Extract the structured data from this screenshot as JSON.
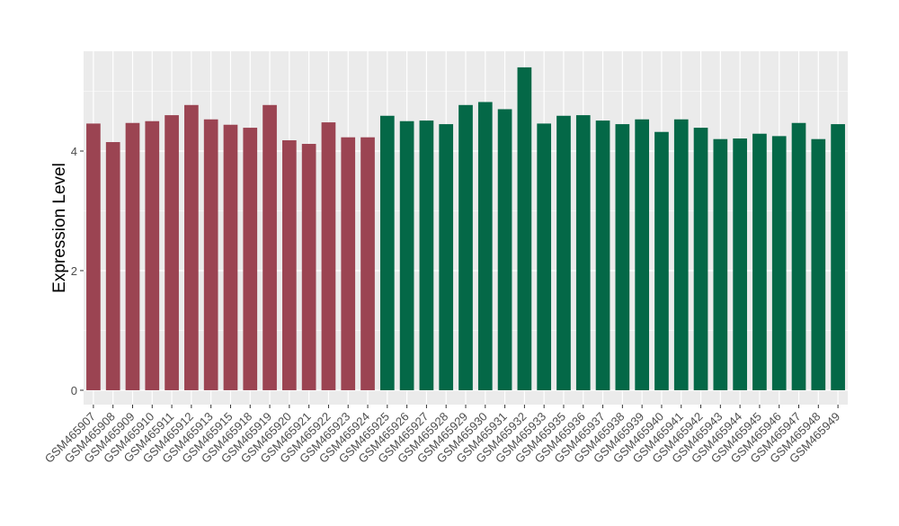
{
  "chart_data": {
    "type": "bar",
    "ylabel": "Expression Level",
    "xlabel": "",
    "ylim": [
      -0.5,
      5.75
    ],
    "y_ticks": [
      0,
      2,
      4
    ],
    "grid": true,
    "legend": "none",
    "colors": {
      "group1": "#9B4452",
      "group2": "#046847",
      "panel_bg": "#EBEBEB",
      "grid": "#FFFFFF"
    },
    "categories": [
      "GSM465907",
      "GSM465908",
      "GSM465909",
      "GSM465910",
      "GSM465911",
      "GSM465912",
      "GSM465913",
      "GSM465915",
      "GSM465918",
      "GSM465919",
      "GSM465920",
      "GSM465921",
      "GSM465922",
      "GSM465923",
      "GSM465924",
      "GSM465925",
      "GSM465926",
      "GSM465927",
      "GSM465928",
      "GSM465929",
      "GSM465930",
      "GSM465931",
      "GSM465932",
      "GSM465933",
      "GSM465935",
      "GSM465936",
      "GSM465937",
      "GSM465938",
      "GSM465939",
      "GSM465940",
      "GSM465941",
      "GSM465942",
      "GSM465943",
      "GSM465944",
      "GSM465945",
      "GSM465946",
      "GSM465947",
      "GSM465948",
      "GSM465949"
    ],
    "values": [
      4.46,
      4.15,
      4.47,
      4.5,
      4.6,
      4.77,
      4.53,
      4.44,
      4.39,
      4.77,
      4.18,
      4.12,
      4.48,
      4.23,
      4.23,
      4.59,
      4.5,
      4.51,
      4.45,
      4.77,
      4.82,
      4.7,
      5.4,
      4.46,
      4.59,
      4.6,
      4.51,
      4.45,
      4.53,
      4.32,
      4.53,
      4.39,
      4.2,
      4.21,
      4.29,
      4.25,
      4.47,
      4.2,
      4.45
    ],
    "groups": [
      1,
      1,
      1,
      1,
      1,
      1,
      1,
      1,
      1,
      1,
      1,
      1,
      1,
      1,
      1,
      2,
      2,
      2,
      2,
      2,
      2,
      2,
      2,
      2,
      2,
      2,
      2,
      2,
      2,
      2,
      2,
      2,
      2,
      2,
      2,
      2,
      2,
      2,
      2
    ]
  }
}
